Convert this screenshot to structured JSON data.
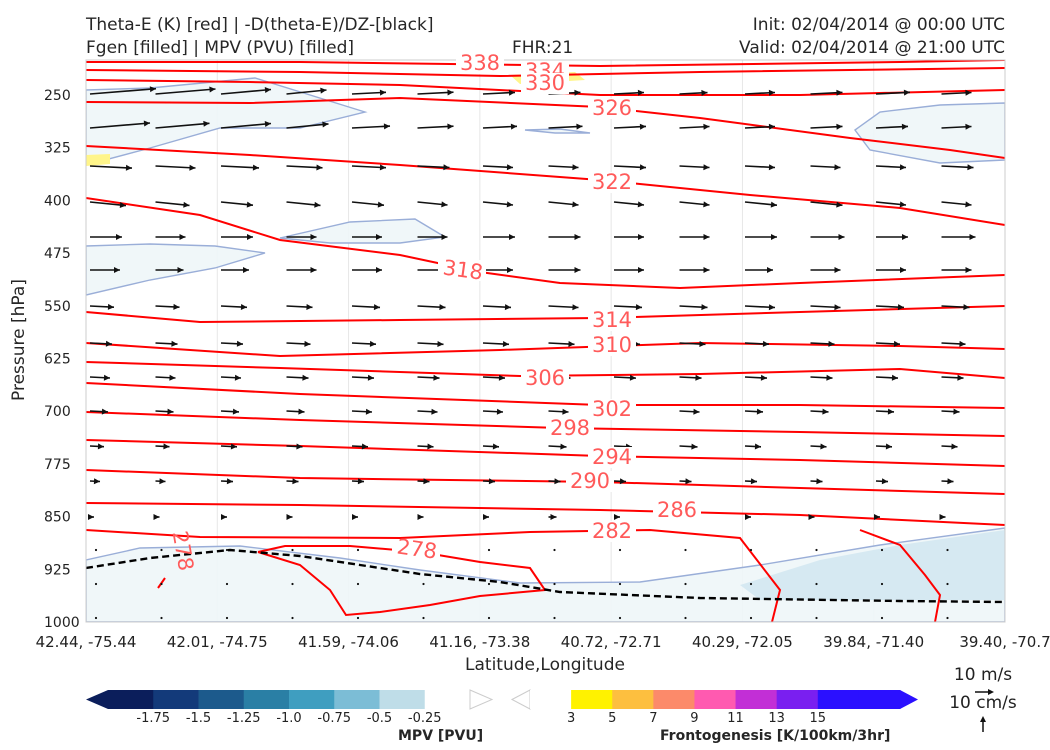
{
  "header": {
    "title_line1": "Theta-E (K) [red] | -D(theta-E)/DZ-[black]",
    "title_line2": "Fgen [filled] | MPV (PVU) [filled]",
    "fhr": "FHR:21",
    "init": "Init: 02/04/2014 @ 00:00 UTC",
    "valid": "Valid: 02/04/2014 @ 21:00 UTC"
  },
  "chart_data": {
    "type": "cross-section",
    "xlabel": "Latitude,Longitude",
    "ylabel": "Pressure [hPa]",
    "x_ticks": [
      "42.44, -75.44",
      "42.01, -74.75",
      "41.59, -74.06",
      "41.16, -73.38",
      "40.72, -72.71",
      "40.29, -72.05",
      "39.84, -71.40",
      "39.40, -70.7"
    ],
    "y_ticks": [
      250,
      325,
      400,
      475,
      550,
      625,
      700,
      775,
      850,
      925,
      1000
    ],
    "ylim": [
      1000,
      200
    ],
    "theta_e_contours": [
      {
        "level": 338,
        "label": "338"
      },
      {
        "level": 334,
        "label": "334"
      },
      {
        "level": 330,
        "label": "330"
      },
      {
        "level": 326,
        "label": "326"
      },
      {
        "level": 322,
        "label": "322"
      },
      {
        "level": 318,
        "label": "318"
      },
      {
        "level": 314,
        "label": "314"
      },
      {
        "level": 310,
        "label": "310"
      },
      {
        "level": 306,
        "label": "306"
      },
      {
        "level": 302,
        "label": "302"
      },
      {
        "level": 298,
        "label": "298"
      },
      {
        "level": 294,
        "label": "294"
      },
      {
        "level": 290,
        "label": "290"
      },
      {
        "level": 286,
        "label": "286"
      },
      {
        "level": 282,
        "label": "282"
      },
      {
        "level": 278,
        "label": "278"
      }
    ],
    "theta_e_color": "#ff0000",
    "theta_e_label_color": "#ff5a5a",
    "mpv_colorbar": {
      "title": "MPV [PVU]",
      "ticks": [
        "-1.75",
        "-1.5",
        "-1.25",
        "-1.0",
        "-0.75",
        "-0.5",
        "-0.25"
      ],
      "colors": [
        "#0b1e5b",
        "#133a7a",
        "#1c5a8c",
        "#2a7fa5",
        "#3f9ec0",
        "#7cbdd6",
        "#bfdde8",
        "#ffffff"
      ]
    },
    "fgen_colorbar": {
      "title": "Frontogenesis [K/100km/3hr]",
      "ticks": [
        "3",
        "5",
        "7",
        "9",
        "11",
        "13",
        "15"
      ],
      "colors": [
        "#ffffff",
        "#fff200",
        "#fdbf3f",
        "#fc8a6a",
        "#ff5ab0",
        "#c22fd6",
        "#7a1ff0",
        "#2b10ff",
        "#2b10ff"
      ]
    },
    "vector_key": {
      "wind": "10 m/s",
      "vertical": "10 cm/s"
    }
  }
}
